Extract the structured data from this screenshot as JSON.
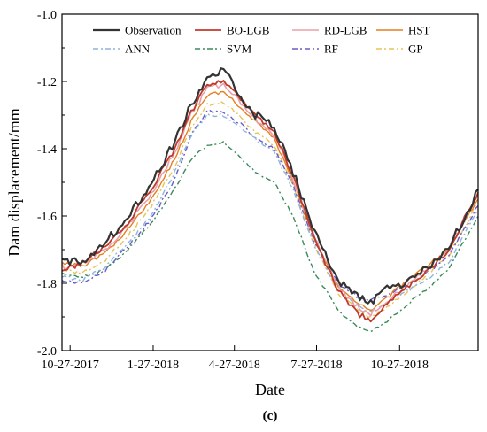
{
  "chart_data": {
    "type": "line",
    "xlabel": "Date",
    "ylabel": "Dam displacement/mm",
    "panel_label": "(c)",
    "x_range": [
      "2017-10-18",
      "2019-01-22"
    ],
    "ylim": [
      -2.0,
      -1.0
    ],
    "x_ticks": [
      {
        "date": "2017-10-27",
        "label": "10-27-2017"
      },
      {
        "date": "2018-01-27",
        "label": "1-27-2018"
      },
      {
        "date": "2018-04-27",
        "label": "4-27-2018"
      },
      {
        "date": "2018-07-27",
        "label": "7-27-2018"
      },
      {
        "date": "2018-10-27",
        "label": "10-27-2018"
      }
    ],
    "y_ticks": [
      {
        "value": -1.0,
        "label": "-1.0"
      },
      {
        "value": -1.2,
        "label": "-1.2"
      },
      {
        "value": -1.4,
        "label": "-1.4"
      },
      {
        "value": -1.6,
        "label": "-1.6"
      },
      {
        "value": -1.8,
        "label": "-1.8"
      },
      {
        "value": -2.0,
        "label": "-2.0"
      }
    ],
    "grid": false,
    "legend_position": "top",
    "series": [
      {
        "name": "Observation",
        "color": "#333333",
        "dash": "solid",
        "width": 2.2,
        "x": [
          "2017-10-18",
          "2017-11-10",
          "2017-12-05",
          "2017-12-30",
          "2018-01-25",
          "2018-02-20",
          "2018-03-10",
          "2018-03-28",
          "2018-04-15",
          "2018-05-01",
          "2018-05-20",
          "2018-06-10",
          "2018-07-01",
          "2018-07-25",
          "2018-08-20",
          "2018-09-10",
          "2018-09-25",
          "2018-10-10",
          "2018-11-01",
          "2018-11-25",
          "2018-12-20",
          "2019-01-22"
        ],
        "y": [
          -1.74,
          -1.73,
          -1.68,
          -1.6,
          -1.5,
          -1.38,
          -1.27,
          -1.19,
          -1.17,
          -1.23,
          -1.3,
          -1.33,
          -1.47,
          -1.65,
          -1.79,
          -1.84,
          -1.86,
          -1.82,
          -1.8,
          -1.76,
          -1.7,
          -1.52
        ]
      },
      {
        "name": "BO-LGB",
        "color": "#c0392b",
        "dash": "solid",
        "width": 1.8,
        "x": [
          "2017-10-18",
          "2017-11-10",
          "2017-12-05",
          "2017-12-30",
          "2018-01-25",
          "2018-02-20",
          "2018-03-10",
          "2018-03-28",
          "2018-04-15",
          "2018-05-01",
          "2018-05-20",
          "2018-06-10",
          "2018-07-01",
          "2018-07-25",
          "2018-08-20",
          "2018-09-10",
          "2018-09-25",
          "2018-10-10",
          "2018-11-01",
          "2018-11-25",
          "2018-12-20",
          "2019-01-22"
        ],
        "y": [
          -1.76,
          -1.74,
          -1.69,
          -1.62,
          -1.52,
          -1.4,
          -1.29,
          -1.21,
          -1.2,
          -1.24,
          -1.3,
          -1.35,
          -1.48,
          -1.67,
          -1.82,
          -1.89,
          -1.91,
          -1.87,
          -1.82,
          -1.77,
          -1.7,
          -1.53
        ]
      },
      {
        "name": "RD-LGB",
        "color": "#e8a0a8",
        "dash": "solid",
        "width": 1.6,
        "x": [
          "2017-10-18",
          "2017-11-10",
          "2017-12-05",
          "2017-12-30",
          "2018-01-25",
          "2018-02-20",
          "2018-03-10",
          "2018-03-28",
          "2018-04-15",
          "2018-05-01",
          "2018-05-20",
          "2018-06-10",
          "2018-07-01",
          "2018-07-25",
          "2018-08-20",
          "2018-09-10",
          "2018-09-25",
          "2018-10-10",
          "2018-11-01",
          "2018-11-25",
          "2018-12-20",
          "2019-01-22"
        ],
        "y": [
          -1.75,
          -1.74,
          -1.7,
          -1.63,
          -1.53,
          -1.41,
          -1.3,
          -1.22,
          -1.21,
          -1.25,
          -1.31,
          -1.36,
          -1.49,
          -1.66,
          -1.81,
          -1.87,
          -1.89,
          -1.86,
          -1.81,
          -1.76,
          -1.7,
          -1.54
        ]
      },
      {
        "name": "HST",
        "color": "#e67e22",
        "dash": "solid",
        "width": 1.4,
        "x": [
          "2017-10-18",
          "2017-11-10",
          "2017-12-05",
          "2017-12-30",
          "2018-01-25",
          "2018-02-20",
          "2018-03-10",
          "2018-03-28",
          "2018-04-15",
          "2018-05-01",
          "2018-05-20",
          "2018-06-10",
          "2018-07-01",
          "2018-07-25",
          "2018-08-20",
          "2018-09-10",
          "2018-09-25",
          "2018-10-10",
          "2018-11-01",
          "2018-11-25",
          "2018-12-20",
          "2019-01-22"
        ],
        "y": [
          -1.74,
          -1.75,
          -1.71,
          -1.64,
          -1.55,
          -1.43,
          -1.32,
          -1.24,
          -1.23,
          -1.27,
          -1.32,
          -1.37,
          -1.5,
          -1.67,
          -1.81,
          -1.86,
          -1.88,
          -1.85,
          -1.8,
          -1.75,
          -1.7,
          -1.55
        ]
      },
      {
        "name": "ANN",
        "color": "#8fb4dc",
        "dash": "6,3,2,3",
        "width": 1.4,
        "x": [
          "2017-10-18",
          "2017-11-10",
          "2017-12-05",
          "2017-12-30",
          "2018-01-25",
          "2018-02-20",
          "2018-03-10",
          "2018-03-28",
          "2018-04-15",
          "2018-05-01",
          "2018-05-20",
          "2018-06-10",
          "2018-07-01",
          "2018-07-25",
          "2018-08-20",
          "2018-09-10",
          "2018-09-25",
          "2018-10-10",
          "2018-11-01",
          "2018-11-25",
          "2018-12-20",
          "2019-01-22"
        ],
        "y": [
          -1.78,
          -1.79,
          -1.75,
          -1.68,
          -1.6,
          -1.47,
          -1.36,
          -1.3,
          -1.3,
          -1.33,
          -1.37,
          -1.41,
          -1.52,
          -1.69,
          -1.82,
          -1.87,
          -1.88,
          -1.86,
          -1.83,
          -1.79,
          -1.74,
          -1.58
        ]
      },
      {
        "name": "SVM",
        "color": "#3a8a5a",
        "dash": "6,3,2,3",
        "width": 1.4,
        "x": [
          "2017-10-18",
          "2017-11-10",
          "2017-12-05",
          "2017-12-30",
          "2018-01-25",
          "2018-02-20",
          "2018-03-10",
          "2018-03-28",
          "2018-04-15",
          "2018-05-01",
          "2018-05-20",
          "2018-06-10",
          "2018-07-01",
          "2018-07-25",
          "2018-08-20",
          "2018-09-10",
          "2018-09-25",
          "2018-10-10",
          "2018-11-01",
          "2018-11-25",
          "2018-12-20",
          "2019-01-22"
        ],
        "y": [
          -1.77,
          -1.78,
          -1.76,
          -1.7,
          -1.62,
          -1.52,
          -1.43,
          -1.39,
          -1.38,
          -1.42,
          -1.47,
          -1.5,
          -1.6,
          -1.77,
          -1.88,
          -1.93,
          -1.94,
          -1.92,
          -1.87,
          -1.82,
          -1.76,
          -1.6
        ]
      },
      {
        "name": "RF",
        "color": "#6a5acd",
        "dash": "6,3,2,3",
        "width": 1.4,
        "x": [
          "2017-10-18",
          "2017-11-10",
          "2017-12-05",
          "2017-12-30",
          "2018-01-25",
          "2018-02-20",
          "2018-03-10",
          "2018-03-28",
          "2018-04-15",
          "2018-05-01",
          "2018-05-20",
          "2018-06-10",
          "2018-07-01",
          "2018-07-25",
          "2018-08-20",
          "2018-09-10",
          "2018-09-25",
          "2018-10-10",
          "2018-11-01",
          "2018-11-25",
          "2018-12-20",
          "2019-01-22"
        ],
        "y": [
          -1.79,
          -1.8,
          -1.76,
          -1.69,
          -1.61,
          -1.49,
          -1.36,
          -1.29,
          -1.29,
          -1.32,
          -1.37,
          -1.4,
          -1.51,
          -1.68,
          -1.8,
          -1.84,
          -1.85,
          -1.84,
          -1.81,
          -1.77,
          -1.72,
          -1.57
        ]
      },
      {
        "name": "GP",
        "color": "#e8c35a",
        "dash": "6,3,2,3",
        "width": 1.4,
        "x": [
          "2017-10-18",
          "2017-11-10",
          "2017-12-05",
          "2017-12-30",
          "2018-01-25",
          "2018-02-20",
          "2018-03-10",
          "2018-03-28",
          "2018-04-15",
          "2018-05-01",
          "2018-05-20",
          "2018-06-10",
          "2018-07-01",
          "2018-07-25",
          "2018-08-20",
          "2018-09-10",
          "2018-09-25",
          "2018-10-10",
          "2018-11-01",
          "2018-11-25",
          "2018-12-20",
          "2019-01-22"
        ],
        "y": [
          -1.76,
          -1.77,
          -1.73,
          -1.66,
          -1.57,
          -1.45,
          -1.34,
          -1.27,
          -1.26,
          -1.3,
          -1.35,
          -1.39,
          -1.51,
          -1.69,
          -1.83,
          -1.88,
          -1.9,
          -1.88,
          -1.83,
          -1.78,
          -1.72,
          -1.56
        ]
      }
    ]
  }
}
